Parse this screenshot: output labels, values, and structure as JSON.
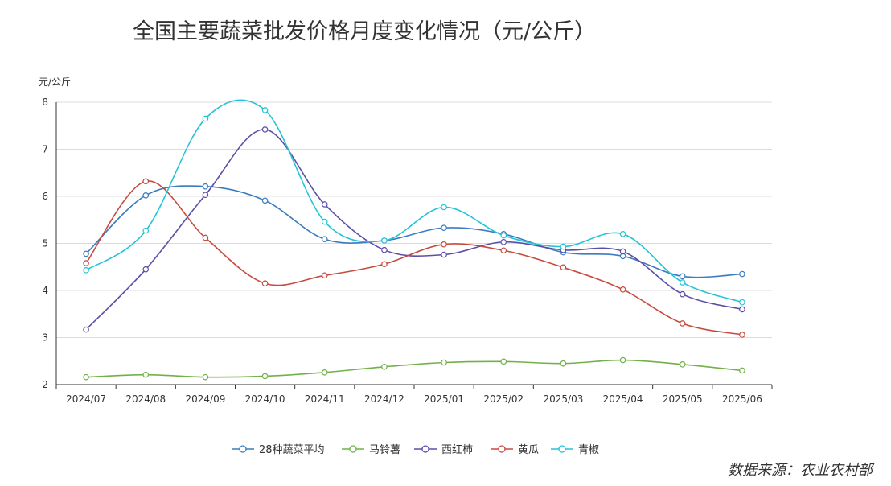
{
  "chart_data": {
    "type": "line",
    "title": "全国主要蔬菜批发价格月度变化情况（元/公斤）",
    "ylabel": "元/公斤",
    "xlabel": "",
    "ylim": [
      2,
      8
    ],
    "yticks": [
      2,
      3,
      4,
      5,
      6,
      7,
      8
    ],
    "grid": true,
    "smooth": true,
    "legend_position": "bottom",
    "categories": [
      "2024/07",
      "2024/08",
      "2024/09",
      "2024/10",
      "2024/11",
      "2024/12",
      "2025/01",
      "2025/02",
      "2025/03",
      "2025/04",
      "2025/05",
      "2025/06"
    ],
    "series": [
      {
        "name": "28种蔬菜平均",
        "color": "#3b7bbf",
        "values": [
          4.78,
          6.02,
          6.21,
          5.91,
          5.09,
          5.06,
          5.33,
          5.2,
          4.81,
          4.73,
          4.3,
          4.35
        ]
      },
      {
        "name": "马铃薯",
        "color": "#72b04a",
        "values": [
          2.16,
          2.21,
          2.16,
          2.18,
          2.26,
          2.38,
          2.47,
          2.49,
          2.45,
          2.52,
          2.43,
          2.3
        ]
      },
      {
        "name": "西红柿",
        "color": "#5b4ea8",
        "values": [
          3.17,
          4.45,
          6.03,
          7.42,
          5.83,
          4.86,
          4.76,
          5.03,
          4.86,
          4.83,
          3.92,
          3.6
        ]
      },
      {
        "name": "黄瓜",
        "color": "#c64a3e",
        "values": [
          4.58,
          6.32,
          5.12,
          4.15,
          4.32,
          4.56,
          4.98,
          4.85,
          4.49,
          4.02,
          3.3,
          3.06
        ]
      },
      {
        "name": "青椒",
        "color": "#24c3d6",
        "values": [
          4.43,
          5.27,
          7.65,
          7.83,
          5.46,
          5.06,
          5.77,
          5.17,
          4.93,
          5.2,
          4.17,
          3.75
        ]
      }
    ],
    "source": "数据来源：农业农村部"
  }
}
